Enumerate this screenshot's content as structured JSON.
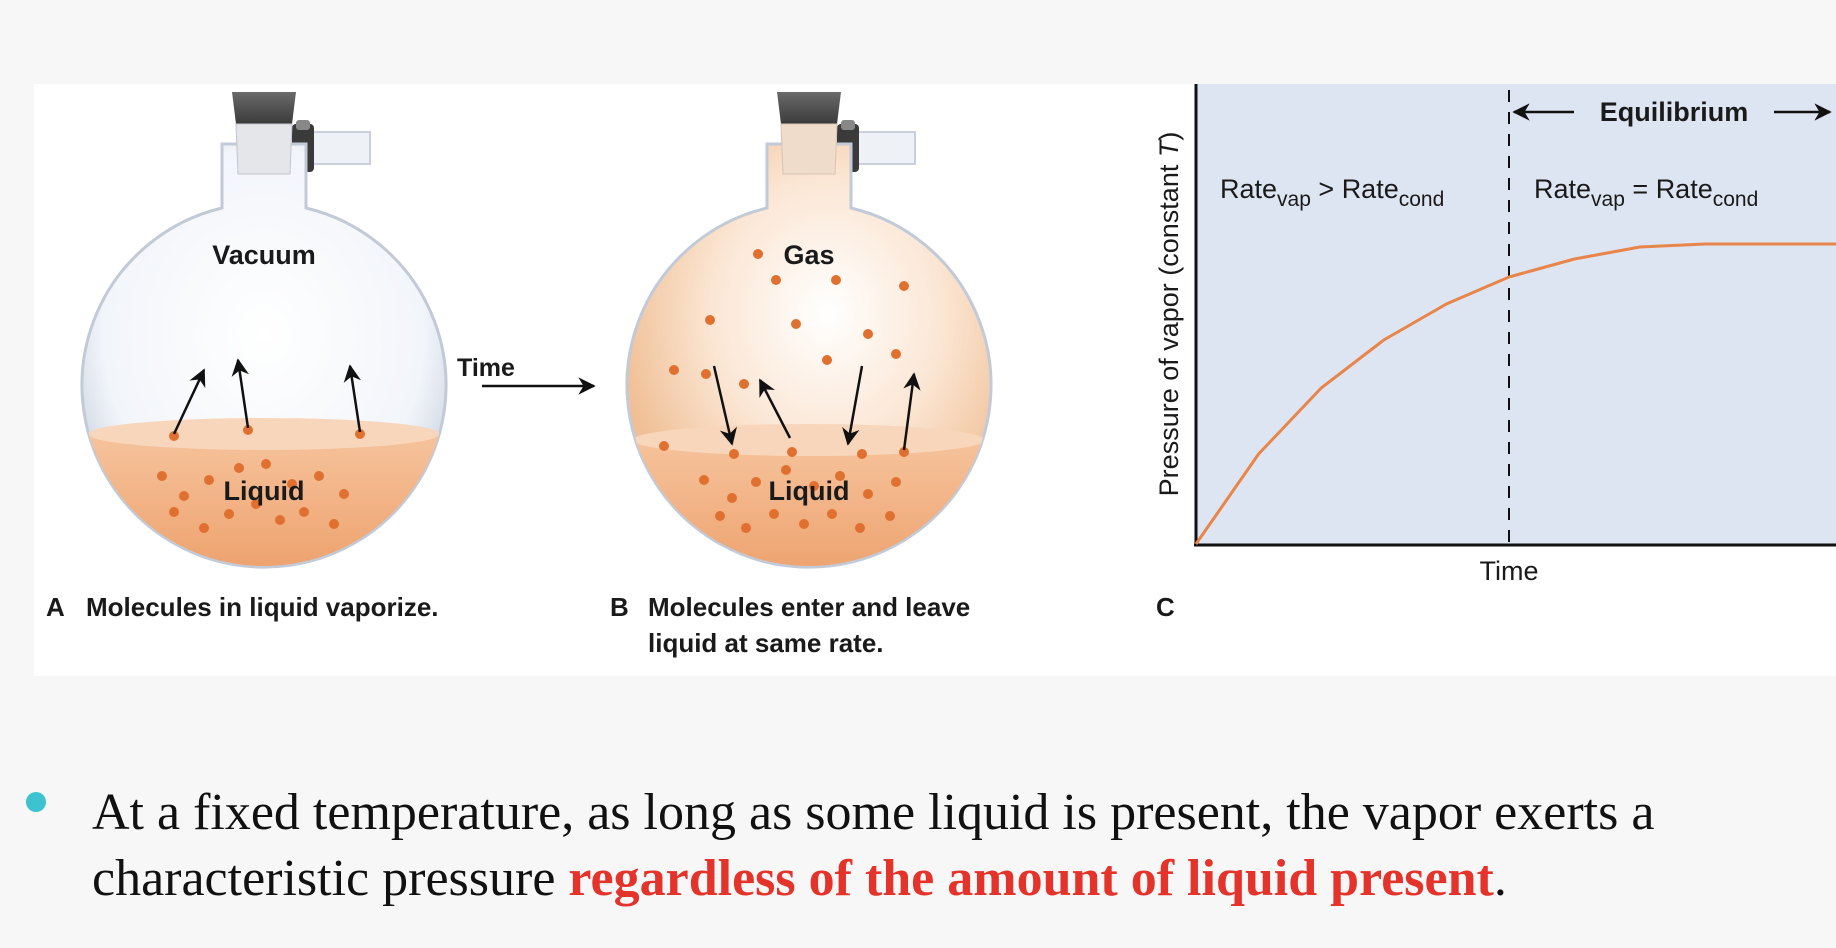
{
  "figure": {
    "panel_a": {
      "gas_label": "Vacuum",
      "liquid_label": "Liquid",
      "letter": "A",
      "caption": "Molecules in liquid vaporize."
    },
    "arrow_label": "Time",
    "panel_b": {
      "gas_label": "Gas",
      "liquid_label": "Liquid",
      "letter": "B",
      "caption_line1": "Molecules enter and leave",
      "caption_line2": "liquid at same rate."
    },
    "panel_c": {
      "letter": "C",
      "ylabel_main": "Pressure of vapor (constant ",
      "ylabel_var": "T",
      "ylabel_close": ")",
      "xlabel": "Time",
      "equilibrium_label": "Equilibrium",
      "left_region": {
        "rate": "Rate",
        "sub1": "vap",
        "op": " > ",
        "rate2": "Rate",
        "sub2": "cond"
      },
      "right_region": {
        "rate": "Rate",
        "sub1": "vap",
        "op": " = ",
        "rate2": "Rate",
        "sub2": "cond"
      }
    },
    "colors": {
      "liquid": "#f0a877",
      "molecule": "#e07030",
      "curve": "#e8854a",
      "plot_bg": "#dde5f2",
      "highlight": "#e4332b",
      "bullet": "#3cc3cf"
    }
  },
  "chart_data": {
    "type": "line",
    "title": "",
    "xlabel": "Time",
    "ylabel": "Pressure of vapor (constant T)",
    "x": [
      0,
      0.1,
      0.2,
      0.3,
      0.4,
      0.5,
      0.6,
      0.7,
      0.8,
      0.9,
      1.0
    ],
    "y": [
      0,
      0.3,
      0.52,
      0.68,
      0.8,
      0.89,
      0.95,
      0.99,
      1.0,
      1.0,
      1.0
    ],
    "equilibrium_x": 0.5,
    "grid": false,
    "legend": "none"
  },
  "text": {
    "caption_part1": "At a fixed temperature, as long as some liquid is present, the vapor exerts a characteristic pressure ",
    "caption_emph": "regardless of the amount of liquid present",
    "caption_end": "."
  }
}
